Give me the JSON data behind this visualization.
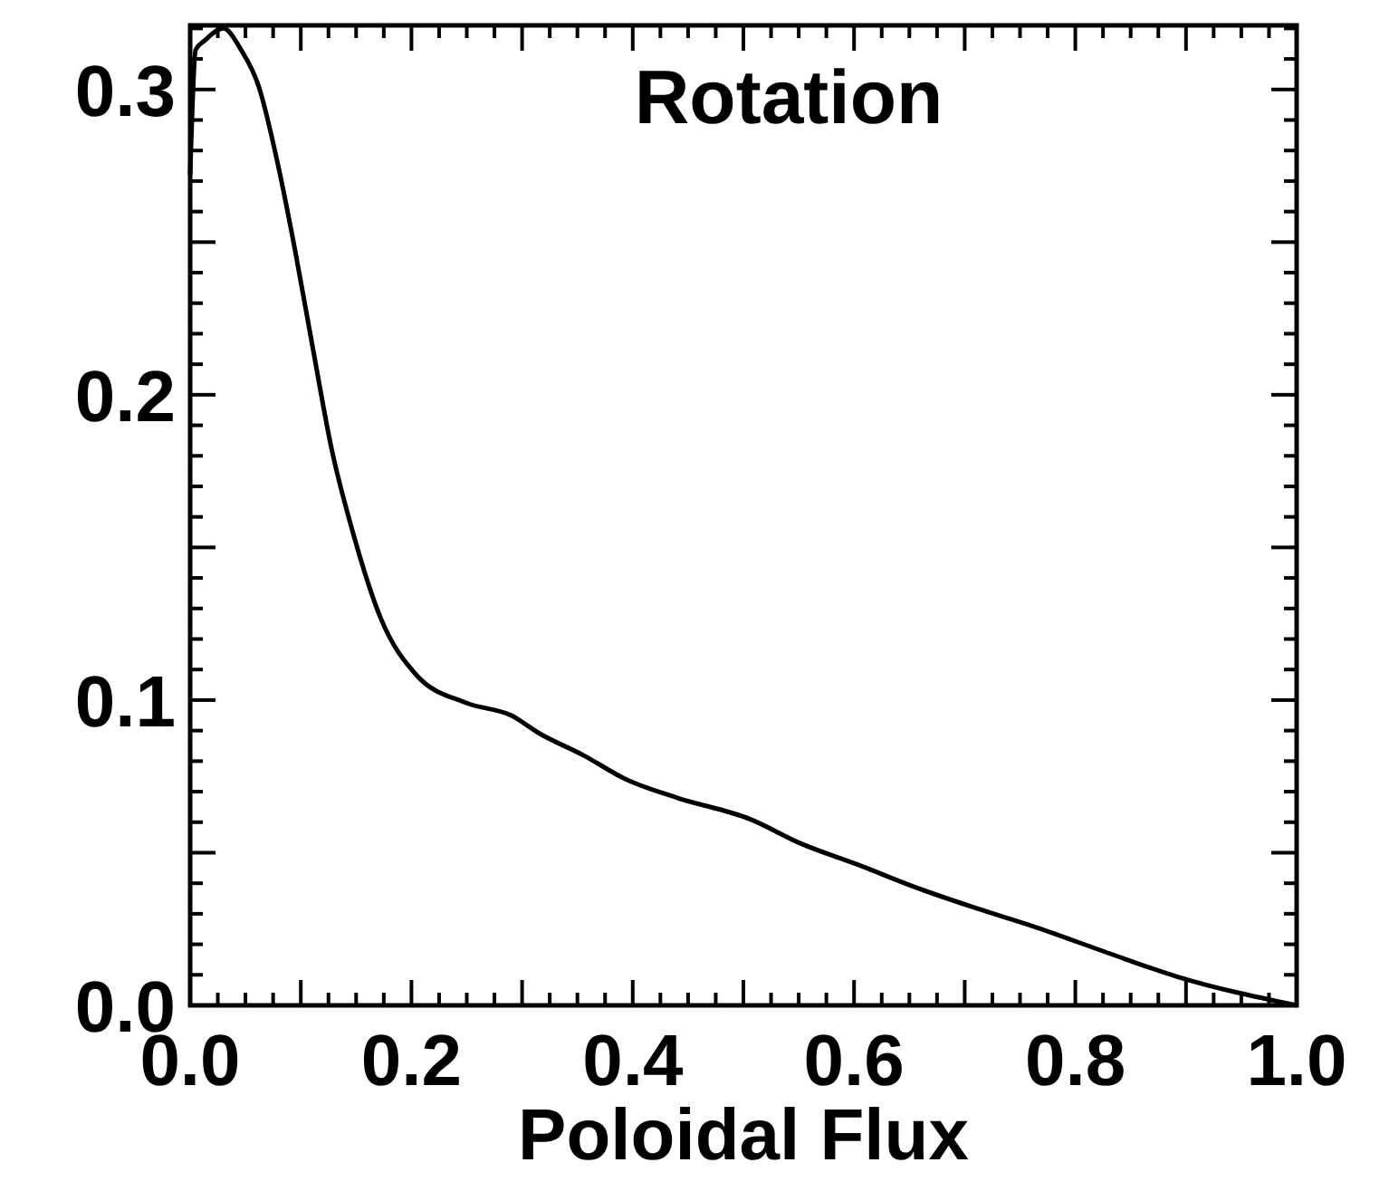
{
  "chart_data": {
    "type": "line",
    "title": "Rotation",
    "xlabel": "Poloidal Flux",
    "series": [
      {
        "color": "#000000",
        "x": [
          0,
          0.005,
          0.013,
          0.03,
          0.046,
          0.062,
          0.079,
          0.095,
          0.111,
          0.128,
          0.147,
          0.172,
          0.205,
          0.25,
          0.29,
          0.316,
          0.355,
          0.394,
          0.44,
          0.506,
          0.552,
          0.604,
          0.656,
          0.709,
          0.761,
          0.827,
          0.892,
          1
        ],
        "values": [
          0.272,
          0.313,
          0.316,
          0.32,
          0.313,
          0.301,
          0.276,
          0.247,
          0.215,
          0.182,
          0.155,
          0.127,
          0.108,
          0.099,
          0.095,
          0.089,
          0.082,
          0.074,
          0.068,
          0.061,
          0.053,
          0.046,
          0.0386,
          0.032,
          0.026,
          0.0175,
          0.0094,
          0
        ]
      }
    ],
    "xlim": [
      0,
      1
    ],
    "ylim": [
      0,
      0.321
    ],
    "xticks": [
      {
        "value": 0,
        "label": "0.0"
      },
      {
        "value": 0.025,
        "label": null
      },
      {
        "value": 0.05,
        "label": null
      },
      {
        "value": 0.075,
        "label": null
      },
      {
        "value": 0.1,
        "label": null
      },
      {
        "value": 0.125,
        "label": null
      },
      {
        "value": 0.15,
        "label": null
      },
      {
        "value": 0.175,
        "label": null
      },
      0.2,
      {
        "value": 0.225,
        "label": null
      },
      {
        "value": 0.25,
        "label": null
      },
      {
        "value": 0.275,
        "label": null
      },
      {
        "value": 0.3,
        "label": null
      },
      {
        "value": 0.325,
        "label": null
      },
      {
        "value": 0.35,
        "label": null
      },
      {
        "value": 0.375,
        "label": null
      },
      0.4,
      {
        "value": 0.425,
        "label": null
      },
      {
        "value": 0.45,
        "label": null
      },
      {
        "value": 0.475,
        "label": null
      },
      {
        "value": 0.5,
        "label": null
      },
      {
        "value": 0.525,
        "label": null
      },
      {
        "value": 0.55,
        "label": null
      },
      {
        "value": 0.575,
        "label": null
      },
      0.6,
      {
        "value": 0.625,
        "label": null
      },
      {
        "value": 0.65,
        "label": null
      },
      {
        "value": 0.675,
        "label": null
      },
      {
        "value": 0.7,
        "label": null
      },
      {
        "value": 0.725,
        "label": null
      },
      {
        "value": 0.75,
        "label": null
      },
      {
        "value": 0.775,
        "label": null
      },
      0.8,
      {
        "value": 0.825,
        "label": null
      },
      {
        "value": 0.85,
        "label": null
      },
      {
        "value": 0.875,
        "label": null
      },
      {
        "value": 0.9,
        "label": null
      },
      {
        "value": 0.925,
        "label": null
      },
      {
        "value": 0.95,
        "label": null
      },
      {
        "value": 0.975,
        "label": null
      },
      {
        "value": 1,
        "label": "1.0"
      }
    ],
    "yticks": [
      {
        "value": 0,
        "label": "0.0"
      },
      {
        "value": 0.01,
        "label": null
      },
      {
        "value": 0.02,
        "label": null
      },
      {
        "value": 0.03,
        "label": null
      },
      {
        "value": 0.04,
        "label": null
      },
      {
        "value": 0.05,
        "label": null
      },
      {
        "value": 0.06,
        "label": null
      },
      {
        "value": 0.07,
        "label": null
      },
      {
        "value": 0.08,
        "label": null
      },
      {
        "value": 0.09,
        "label": null
      },
      0.1,
      {
        "value": 0.11,
        "label": null
      },
      {
        "value": 0.12,
        "label": null
      },
      {
        "value": 0.13,
        "label": null
      },
      {
        "value": 0.14,
        "label": null
      },
      {
        "value": 0.15,
        "label": null
      },
      {
        "value": 0.16,
        "label": null
      },
      {
        "value": 0.17,
        "label": null
      },
      {
        "value": 0.18,
        "label": null
      },
      {
        "value": 0.19,
        "label": null
      },
      0.2,
      {
        "value": 0.21,
        "label": null
      },
      {
        "value": 0.22,
        "label": null
      },
      {
        "value": 0.23,
        "label": null
      },
      {
        "value": 0.24,
        "label": null
      },
      {
        "value": 0.25,
        "label": null
      },
      {
        "value": 0.26,
        "label": null
      },
      {
        "value": 0.27,
        "label": null
      },
      {
        "value": 0.28,
        "label": null
      },
      {
        "value": 0.29,
        "label": null
      },
      0.3,
      {
        "value": 0.31,
        "label": null
      },
      {
        "value": 0.32,
        "label": null
      }
    ],
    "grid": false,
    "marker": "none",
    "line_style": "solid"
  }
}
